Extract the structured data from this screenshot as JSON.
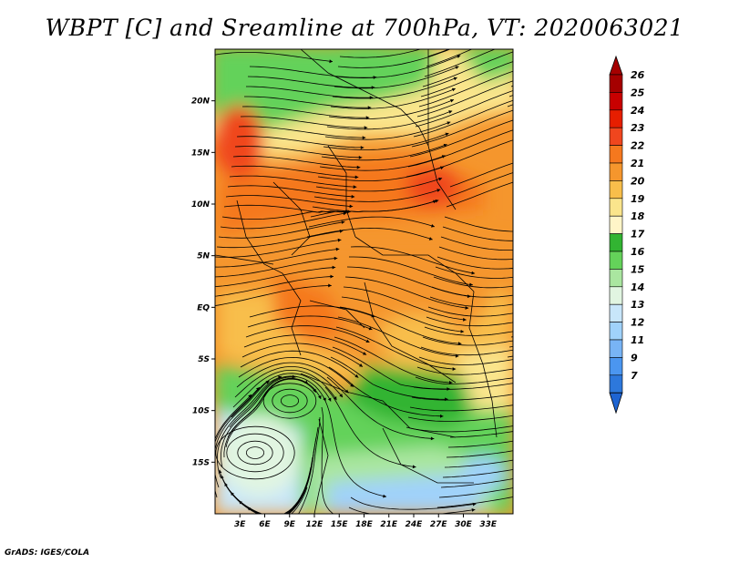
{
  "title": "WBPT [C] and Sreamline at 700hPa, VT: 2020063021",
  "credit": "GrADS: IGES/COLA",
  "map": {
    "lat_range": [
      -20,
      25
    ],
    "lon_range": [
      0,
      36
    ],
    "lat_ticks": [
      {
        "value": 20,
        "label": "20N"
      },
      {
        "value": 15,
        "label": "15N"
      },
      {
        "value": 10,
        "label": "10N"
      },
      {
        "value": 5,
        "label": "5N"
      },
      {
        "value": 0,
        "label": "EQ"
      },
      {
        "value": -5,
        "label": "5S"
      },
      {
        "value": -10,
        "label": "10S"
      },
      {
        "value": -15,
        "label": "15S"
      }
    ],
    "lon_ticks": [
      {
        "value": 3,
        "label": "3E"
      },
      {
        "value": 6,
        "label": "6E"
      },
      {
        "value": 9,
        "label": "9E"
      },
      {
        "value": 12,
        "label": "12E"
      },
      {
        "value": 15,
        "label": "15E"
      },
      {
        "value": 18,
        "label": "18E"
      },
      {
        "value": 21,
        "label": "21E"
      },
      {
        "value": 24,
        "label": "24E"
      },
      {
        "value": 27,
        "label": "27E"
      },
      {
        "value": 30,
        "label": "30E"
      },
      {
        "value": 33,
        "label": "33E"
      }
    ]
  },
  "colorbar": {
    "levels": [
      {
        "label": "26",
        "color": "#a50000"
      },
      {
        "label": "25",
        "color": "#c80000"
      },
      {
        "label": "24",
        "color": "#e61e00"
      },
      {
        "label": "23",
        "color": "#f0461e"
      },
      {
        "label": "22",
        "color": "#f5781e"
      },
      {
        "label": "21",
        "color": "#f5962d"
      },
      {
        "label": "20",
        "color": "#f8be4b"
      },
      {
        "label": "19",
        "color": "#fae58c"
      },
      {
        "label": "18",
        "color": "#fff5c8"
      },
      {
        "label": "17",
        "color": "#32b432"
      },
      {
        "label": "16",
        "color": "#64d25a"
      },
      {
        "label": "15",
        "color": "#aae6a0"
      },
      {
        "label": "14",
        "color": "#e1f5e1"
      },
      {
        "label": "13",
        "color": "#c8e6fa"
      },
      {
        "label": "12",
        "color": "#a0d2fa"
      },
      {
        "label": "11",
        "color": "#78b4f5"
      },
      {
        "label": "9",
        "color": "#4b96f0"
      },
      {
        "label": "7",
        "color": "#2d78dc"
      }
    ],
    "overflow_low_color": "#1e64d2"
  }
}
